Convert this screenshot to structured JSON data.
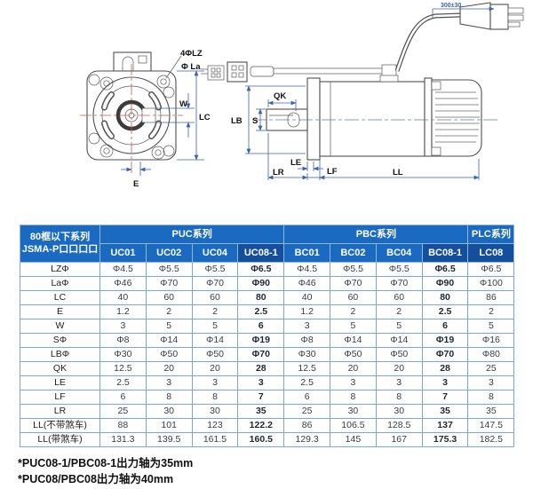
{
  "drawing": {
    "front": {
      "holes_label": "4ΦLZ",
      "flange_circle_label": "Φ La",
      "w_label": "W",
      "lc_label": "LC",
      "e_label": "E"
    },
    "side": {
      "qk_label": "QK",
      "lb_label": "LB",
      "s_label": "S",
      "le_label": "LE",
      "lr_label": "LR",
      "lf_label": "LF",
      "ll_label": "LL",
      "cable_length_label": "300±30"
    }
  },
  "table": {
    "corner_header_line1": "80框以下系列",
    "corner_header_line2": "JSMA-P口口口口",
    "groups": [
      {
        "label": "PUC系列",
        "span": 4,
        "highlight": false
      },
      {
        "label": "PBC系列",
        "span": 4,
        "highlight": false
      },
      {
        "label": "PLC系列",
        "span": 1,
        "highlight": false
      }
    ],
    "columns": [
      {
        "label": "UC01",
        "highlight": false,
        "bold": false
      },
      {
        "label": "UC02",
        "highlight": false,
        "bold": false
      },
      {
        "label": "UC04",
        "highlight": false,
        "bold": false
      },
      {
        "label": "UC08-1",
        "highlight": true,
        "bold": true
      },
      {
        "label": "BC01",
        "highlight": false,
        "bold": false
      },
      {
        "label": "BC02",
        "highlight": false,
        "bold": false
      },
      {
        "label": "BC04",
        "highlight": false,
        "bold": false
      },
      {
        "label": "BC08-1",
        "highlight": true,
        "bold": true
      },
      {
        "label": "LC08",
        "highlight": true,
        "bold": false
      }
    ],
    "rows": [
      {
        "label": "LZΦ",
        "values": [
          "Φ4.5",
          "Φ5.5",
          "Φ5.5",
          "Φ6.5",
          "Φ4.5",
          "Φ5.5",
          "Φ5.5",
          "Φ6.5",
          "Φ6.5"
        ]
      },
      {
        "label": "LaΦ",
        "values": [
          "Φ46",
          "Φ70",
          "Φ70",
          "Φ90",
          "Φ46",
          "Φ70",
          "Φ70",
          "Φ90",
          "Φ100"
        ]
      },
      {
        "label": "LC",
        "values": [
          "40",
          "60",
          "60",
          "80",
          "40",
          "60",
          "60",
          "80",
          "86"
        ]
      },
      {
        "label": "E",
        "values": [
          "1.2",
          "2",
          "2",
          "2.5",
          "1.2",
          "2",
          "2",
          "2.5",
          "2"
        ]
      },
      {
        "label": "W",
        "values": [
          "3",
          "5",
          "5",
          "6",
          "3",
          "5",
          "5",
          "6",
          "5"
        ]
      },
      {
        "label": "SΦ",
        "values": [
          "Φ8",
          "Φ14",
          "Φ14",
          "Φ19",
          "Φ8",
          "Φ14",
          "Φ14",
          "Φ19",
          "Φ16"
        ]
      },
      {
        "label": "LBΦ",
        "values": [
          "Φ30",
          "Φ50",
          "Φ50",
          "Φ70",
          "Φ30",
          "Φ50",
          "Φ50",
          "Φ70",
          "Φ80"
        ]
      },
      {
        "label": "QK",
        "values": [
          "12.5",
          "20",
          "20",
          "28",
          "12.5",
          "20",
          "20",
          "28",
          "25"
        ]
      },
      {
        "label": "LE",
        "values": [
          "2.5",
          "3",
          "3",
          "3",
          "2.5",
          "3",
          "3",
          "3",
          "3"
        ]
      },
      {
        "label": "LF",
        "values": [
          "6",
          "8",
          "8",
          "7",
          "6",
          "8",
          "8",
          "7",
          "8"
        ]
      },
      {
        "label": "LR",
        "values": [
          "25",
          "30",
          "30",
          "35",
          "25",
          "30",
          "30",
          "35",
          "35"
        ]
      },
      {
        "label": "LL(不带煞车)",
        "values": [
          "88",
          "101",
          "123",
          "122.2",
          "86",
          "106.5",
          "128.5",
          "137",
          "147.5"
        ]
      },
      {
        "label": "LL(带煞车)",
        "values": [
          "131.3",
          "139.5",
          "161.5",
          "160.5",
          "129.3",
          "145",
          "167",
          "175.3",
          "182.5"
        ]
      }
    ]
  },
  "notes": [
    "*PUC08-1/PBC08-1出力轴为35mm",
    "*PUC08/PBC08出力轴为40mm"
  ],
  "colors": {
    "header_blue": "#1b6ac2",
    "header_dark_blue": "#134f9c",
    "table_border": "#7aa6da",
    "dimension_blue": "#3b63b0",
    "centerline_red": "#cf5353"
  }
}
